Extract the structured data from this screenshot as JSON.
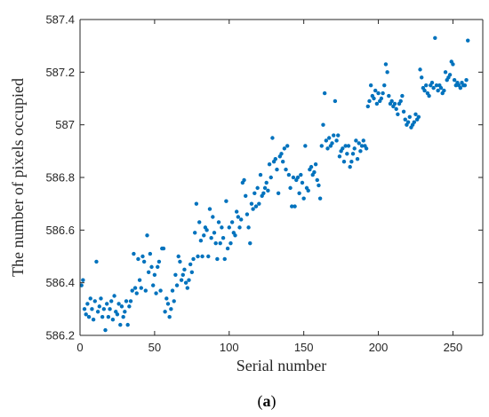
{
  "chart_data": {
    "type": "scatter",
    "xlabel": "Serial number",
    "ylabel": "The number of pixels occupied",
    "panel_label": {
      "open": "(",
      "letter": "a",
      "close": ")"
    },
    "xlim": [
      0,
      270
    ],
    "ylim": [
      586.2,
      587.4
    ],
    "xticks": [
      0,
      50,
      100,
      150,
      200,
      250
    ],
    "yticks": [
      586.2,
      586.4,
      586.6,
      586.8,
      587,
      587.2,
      587.4
    ],
    "ytick_labels": [
      "586.2",
      "586.4",
      "586.6",
      "586.8",
      "587",
      "587.2",
      "587.4"
    ],
    "grid": false,
    "marker_color": "#0072BD",
    "series": [
      {
        "x": [
          1,
          2,
          3,
          4,
          5,
          6,
          7,
          8,
          9,
          10,
          11,
          12,
          13,
          14,
          15,
          16,
          17,
          18,
          19,
          20,
          21,
          22,
          23,
          24,
          25,
          26,
          27,
          28,
          29,
          30,
          31,
          32,
          33,
          34,
          35,
          36,
          37,
          38,
          39,
          40,
          41,
          42,
          43,
          44,
          45,
          46,
          47,
          48,
          49,
          50,
          51,
          52,
          53,
          54,
          55,
          56,
          57,
          58,
          59,
          60,
          61,
          62,
          63,
          64,
          65,
          66,
          67,
          68,
          69,
          70,
          71,
          72,
          73,
          74,
          75,
          76,
          77,
          78,
          79,
          80,
          81,
          82,
          83,
          84,
          85,
          86,
          87,
          88,
          89,
          90,
          91,
          92,
          93,
          94,
          95,
          96,
          97,
          98,
          99,
          100,
          101,
          102,
          103,
          104,
          105,
          106,
          107,
          108,
          109,
          110,
          111,
          112,
          113,
          114,
          115,
          116,
          117,
          118,
          119,
          120,
          121,
          122,
          123,
          124,
          125,
          126,
          127,
          128,
          129,
          130,
          131,
          132,
          133,
          134,
          135,
          136,
          137,
          138,
          139,
          140,
          141,
          142,
          143,
          144,
          145,
          146,
          147,
          148,
          149,
          150,
          151,
          152,
          153,
          154,
          155,
          156,
          157,
          158,
          159,
          160,
          161,
          162,
          163,
          164,
          165,
          166,
          167,
          168,
          169,
          170,
          171,
          172,
          173,
          174,
          175,
          176,
          177,
          178,
          179,
          180,
          181,
          182,
          183,
          184,
          185,
          186,
          187,
          188,
          189,
          190,
          191,
          192,
          193,
          194,
          195,
          196,
          197,
          198,
          199,
          200,
          201,
          202,
          203,
          204,
          205,
          206,
          207,
          208,
          209,
          210,
          211,
          212,
          213,
          214,
          215,
          216,
          217,
          218,
          219,
          220,
          221,
          222,
          223,
          224,
          225,
          226,
          227,
          228,
          229,
          230,
          231,
          232,
          233,
          234,
          235,
          236,
          237,
          238,
          239,
          240,
          241,
          242,
          243,
          244,
          245,
          246,
          247,
          248,
          249,
          250,
          251,
          252,
          253,
          254,
          255,
          256,
          257,
          258,
          259,
          260
        ],
        "y": [
          586.39,
          586.41,
          586.3,
          586.28,
          586.32,
          586.27,
          586.34,
          586.3,
          586.26,
          586.33,
          586.48,
          586.29,
          586.31,
          586.34,
          586.27,
          586.3,
          586.22,
          586.32,
          586.27,
          586.3,
          586.33,
          586.26,
          586.35,
          586.29,
          586.28,
          586.32,
          586.24,
          586.31,
          586.27,
          586.29,
          586.33,
          586.24,
          586.31,
          586.33,
          586.37,
          586.51,
          586.38,
          586.36,
          586.49,
          586.41,
          586.38,
          586.5,
          586.48,
          586.37,
          586.58,
          586.44,
          586.51,
          586.46,
          586.39,
          586.43,
          586.36,
          586.46,
          586.48,
          586.37,
          586.53,
          586.53,
          586.29,
          586.34,
          586.32,
          586.27,
          586.3,
          586.37,
          586.33,
          586.43,
          586.39,
          586.5,
          586.48,
          586.41,
          586.43,
          586.45,
          586.4,
          586.38,
          586.41,
          586.47,
          586.44,
          586.49,
          586.59,
          586.7,
          586.5,
          586.63,
          586.56,
          586.5,
          586.58,
          586.61,
          586.6,
          586.5,
          586.68,
          586.57,
          586.65,
          586.59,
          586.55,
          586.49,
          586.63,
          586.55,
          586.61,
          586.57,
          586.49,
          586.71,
          586.53,
          586.61,
          586.55,
          586.63,
          586.59,
          586.58,
          586.67,
          586.65,
          586.61,
          586.64,
          586.78,
          586.79,
          586.73,
          586.66,
          586.61,
          586.55,
          586.7,
          586.68,
          586.74,
          586.69,
          586.76,
          586.7,
          586.81,
          586.73,
          586.74,
          586.76,
          586.78,
          586.75,
          586.85,
          586.8,
          586.95,
          586.86,
          586.87,
          586.83,
          586.74,
          586.88,
          586.89,
          586.86,
          586.91,
          586.83,
          586.92,
          586.81,
          586.76,
          586.69,
          586.8,
          586.69,
          586.79,
          586.8,
          586.74,
          586.81,
          586.78,
          586.72,
          586.92,
          586.76,
          586.75,
          586.83,
          586.84,
          586.81,
          586.82,
          586.85,
          586.79,
          586.77,
          586.72,
          586.92,
          587.0,
          587.12,
          586.94,
          586.91,
          586.95,
          586.92,
          586.93,
          586.96,
          587.09,
          586.94,
          586.96,
          586.88,
          586.9,
          586.91,
          586.86,
          586.92,
          586.89,
          586.92,
          586.84,
          586.86,
          586.89,
          586.91,
          586.94,
          586.87,
          586.93,
          586.9,
          586.92,
          586.94,
          586.92,
          586.91,
          587.07,
          587.09,
          587.15,
          587.11,
          587.1,
          587.13,
          587.08,
          587.12,
          587.09,
          587.1,
          587.12,
          587.15,
          587.23,
          587.2,
          587.11,
          587.08,
          587.09,
          587.07,
          587.08,
          587.06,
          587.04,
          587.08,
          587.09,
          587.11,
          587.05,
          587.02,
          587.0,
          587.01,
          587.03,
          586.99,
          587.0,
          587.01,
          587.04,
          587.02,
          587.03,
          587.21,
          587.18,
          587.14,
          587.13,
          587.15,
          587.12,
          587.11,
          587.15,
          587.16,
          587.14,
          587.33,
          587.15,
          587.13,
          587.15,
          587.14,
          587.12,
          587.13,
          587.2,
          587.17,
          587.18,
          587.19,
          587.24,
          587.23,
          587.17,
          587.15,
          587.16,
          587.15,
          587.14,
          587.16,
          587.15,
          587.15,
          587.17,
          587.32
        ]
      }
    ]
  }
}
